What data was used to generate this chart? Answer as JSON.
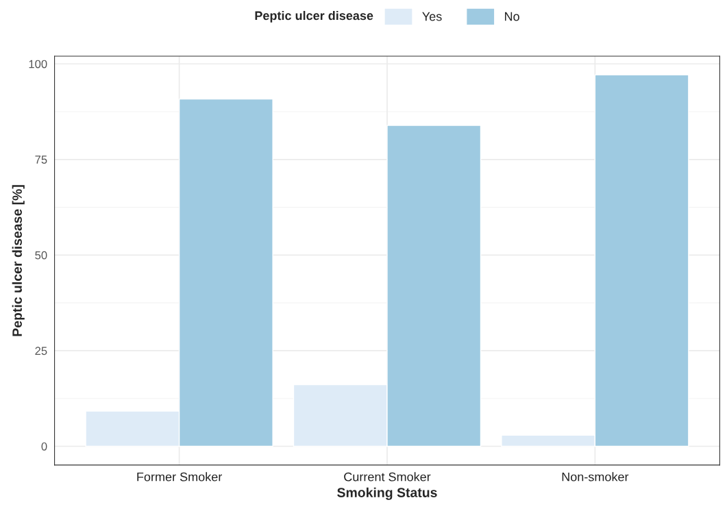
{
  "chart_data": {
    "type": "bar",
    "xlabel": "Smoking Status",
    "ylabel": "Peptic ulcer disease [%]",
    "legend_title": "Peptic ulcer disease",
    "categories": [
      "Former Smoker",
      "Current Smoker",
      "Non-smoker"
    ],
    "series": [
      {
        "name": "Yes",
        "color": "#deebf7",
        "values": [
          9.2,
          16.1,
          2.9
        ]
      },
      {
        "name": "No",
        "color": "#9ecae1",
        "values": [
          90.8,
          83.9,
          97.1
        ]
      }
    ],
    "ylim": [
      -4.9,
      102
    ],
    "yticks": [
      0,
      25,
      50,
      75,
      100
    ],
    "grid": true,
    "legend": "top"
  }
}
